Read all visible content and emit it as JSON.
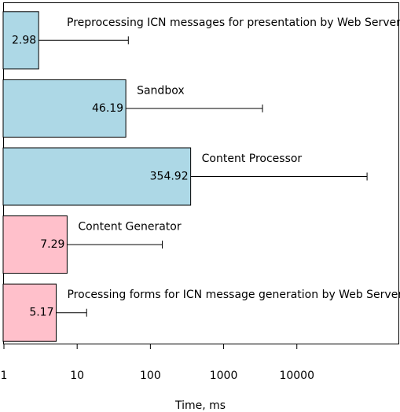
{
  "chart_data": {
    "type": "bar",
    "orientation": "horizontal",
    "x_label": "Time, ms",
    "categories": [
      "Preprocessing ICN messages for presentation by Web Server",
      "Sandbox",
      "Content Processor",
      "Content Generator",
      "Processing forms for ICN message generation by Web Server"
    ],
    "values": [
      2.98,
      46.19,
      354.92,
      7.29,
      5.17
    ],
    "errors": [
      47,
      3350,
      90600,
      138,
      8.3
    ],
    "colors": [
      "#add8e6",
      "#add8e6",
      "#add8e6",
      "#ffc0cb",
      "#ffc0cb"
    ],
    "xlim": [
      1,
      250000
    ],
    "xticks": [
      1,
      10,
      100,
      1000,
      10000
    ],
    "log_x": true
  }
}
